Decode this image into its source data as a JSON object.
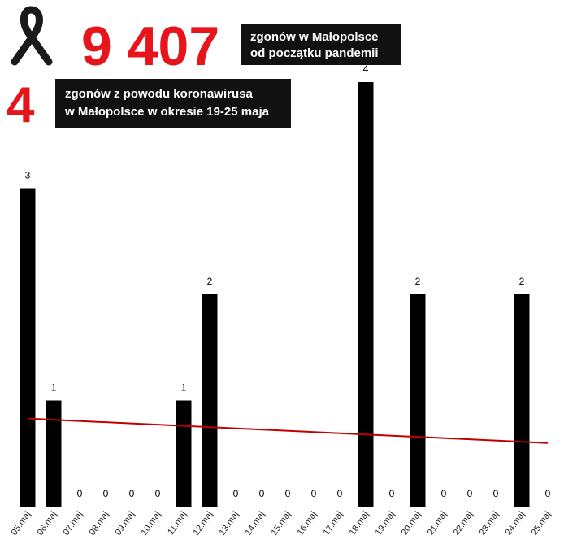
{
  "header": {
    "total": "9 407",
    "total_caption": [
      "zgonów w Małopolsce",
      "od początku pandemii"
    ],
    "week": "4",
    "week_caption": [
      "zgonów z powodu koronawirusa",
      "w Małopolsce w okresie 19-25 maja"
    ]
  },
  "chart_data": {
    "type": "bar",
    "categories": [
      "05.maj",
      "06.maj",
      "07.maj",
      "08.maj",
      "09.maj",
      "10.maj",
      "11.maj",
      "12.maj",
      "13.maj",
      "14.maj",
      "15.maj",
      "16.maj",
      "17.maj",
      "18.maj",
      "19.maj",
      "20.maj",
      "21.maj",
      "22.maj",
      "23.maj",
      "24.maj",
      "25.maj"
    ],
    "values": [
      3,
      1,
      0,
      0,
      0,
      0,
      1,
      2,
      0,
      0,
      0,
      0,
      0,
      4,
      0,
      2,
      0,
      0,
      0,
      2,
      0
    ],
    "color": "#000000",
    "ylim": [
      0,
      4
    ],
    "trendline": {
      "color": "#c00000",
      "values": [
        0.83,
        0.6
      ]
    }
  }
}
